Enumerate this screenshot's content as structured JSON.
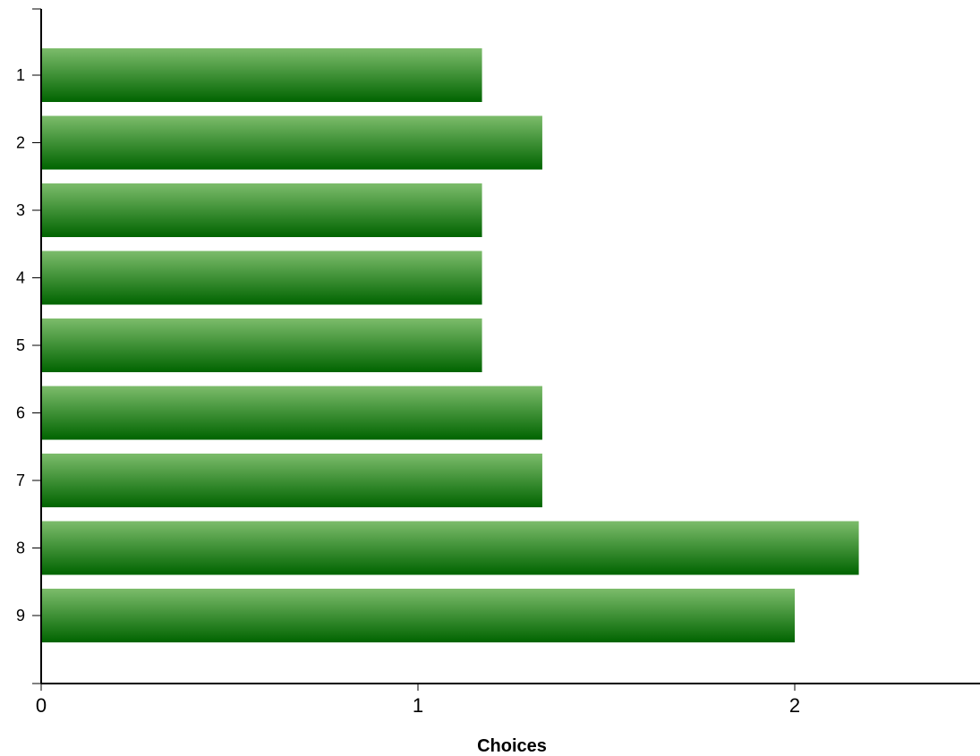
{
  "chart_data": {
    "type": "bar",
    "orientation": "horizontal",
    "title": "",
    "xlabel": "Choices",
    "ylabel": "",
    "categories": [
      "1",
      "2",
      "3",
      "4",
      "5",
      "6",
      "7",
      "8",
      "9"
    ],
    "values": [
      1.17,
      1.33,
      1.17,
      1.17,
      1.17,
      1.33,
      1.33,
      2.17,
      2.0
    ],
    "xlim": [
      0,
      2.5
    ],
    "xticks": [
      "0",
      "1",
      "2"
    ],
    "grid": false,
    "colors": {
      "bar_top": "#7cbc6b",
      "bar_bottom": "#006400"
    }
  }
}
